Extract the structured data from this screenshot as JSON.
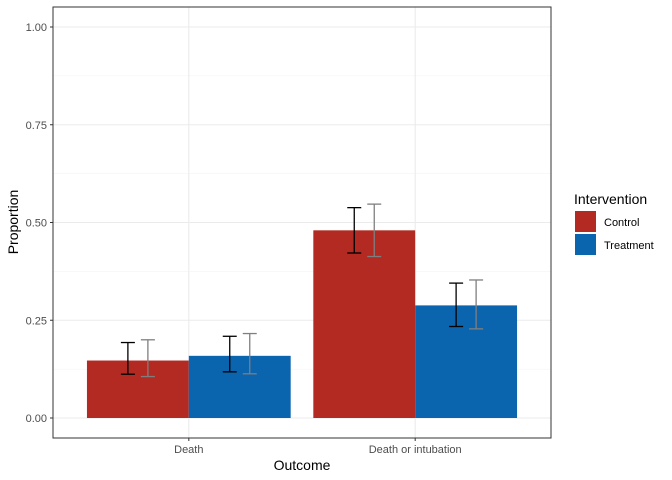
{
  "chart_data": {
    "type": "bar",
    "xlabel": "Outcome",
    "ylabel": "Proportion",
    "ylim": [
      0,
      1.04
    ],
    "yticks": [
      0.0,
      0.25,
      0.5,
      0.75,
      1.0
    ],
    "ytick_labels": [
      "0.00",
      "0.25",
      "0.50",
      "0.75",
      "1.00"
    ],
    "grid": true,
    "categories": [
      "Death",
      "Death or intubation"
    ],
    "legend": {
      "title": "Intervention",
      "position": "right"
    },
    "series": [
      {
        "name": "Control",
        "color": "#B22A22",
        "values": [
          0.147,
          0.48
        ],
        "ci_black": [
          [
            0.112,
            0.193
          ],
          [
            0.422,
            0.538
          ]
        ],
        "ci_grey": [
          [
            0.106,
            0.2
          ],
          [
            0.413,
            0.547
          ]
        ]
      },
      {
        "name": "Treatment",
        "color": "#0B64AE",
        "values": [
          0.159,
          0.288
        ],
        "ci_black": [
          [
            0.118,
            0.209
          ],
          [
            0.234,
            0.345
          ]
        ],
        "ci_grey": [
          [
            0.113,
            0.216
          ],
          [
            0.228,
            0.353
          ]
        ]
      }
    ]
  }
}
